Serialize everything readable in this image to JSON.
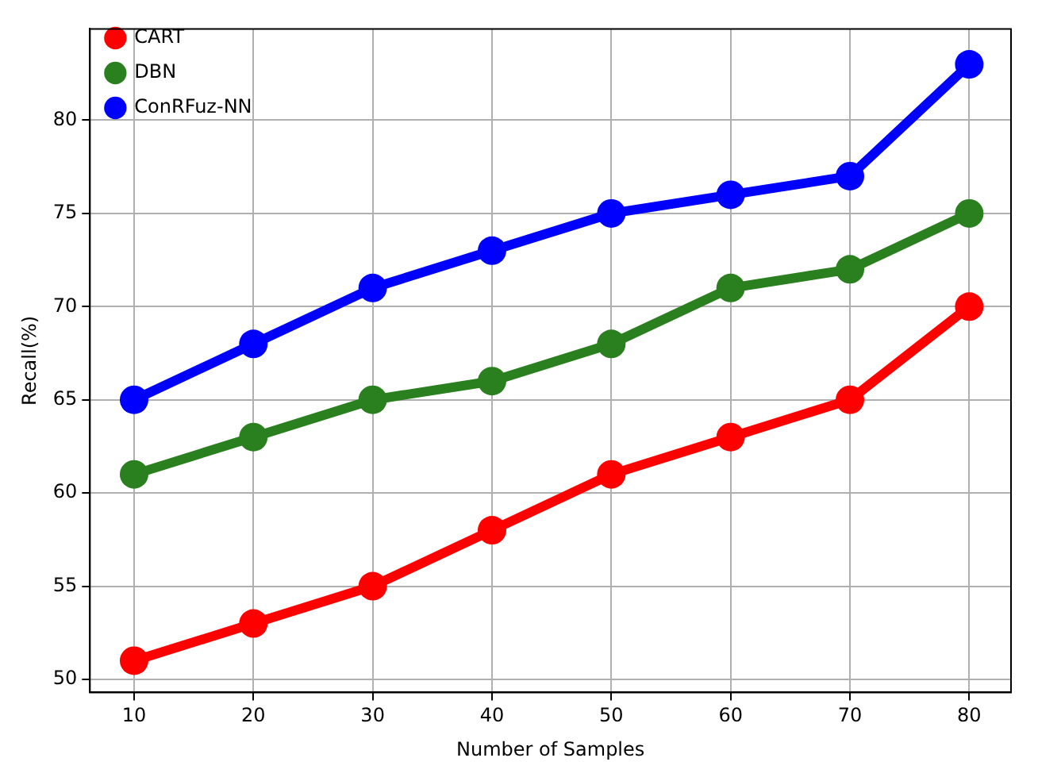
{
  "chart_data": {
    "type": "line",
    "xlabel": "Number of Samples",
    "ylabel": "Recall(%)",
    "x": [
      10,
      20,
      30,
      40,
      50,
      60,
      70,
      80
    ],
    "series": [
      {
        "name": "CART",
        "color": "#ff0000",
        "values": [
          51,
          53,
          55,
          58,
          61,
          63,
          65,
          70
        ]
      },
      {
        "name": "DBN",
        "color": "#2a7f1e",
        "values": [
          61,
          63,
          65,
          66,
          68,
          71,
          72,
          75
        ]
      },
      {
        "name": "ConRFuz-NN",
        "color": "#0000ff",
        "values": [
          65,
          68,
          71,
          73,
          75,
          76,
          77,
          83
        ]
      }
    ],
    "xlim": [
      6.3,
      83.5
    ],
    "xticks": [
      10,
      20,
      30,
      40,
      50,
      60,
      70,
      80
    ],
    "ylim": [
      49.3,
      84.9
    ],
    "yticks": [
      50,
      55,
      60,
      65,
      70,
      75,
      80
    ],
    "grid": true,
    "legend": "top left",
    "marker": "circle",
    "line_style": "solid"
  }
}
